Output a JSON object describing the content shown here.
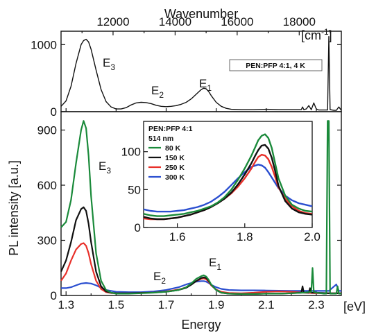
{
  "chart_data": {
    "type": "line",
    "top_axis": {
      "label": "Wavenumber",
      "unit": "[cm",
      "unit_sup": "-1",
      "unit_close": "]",
      "ticks": [
        {
          "value": 12000,
          "label": "12000"
        },
        {
          "value": 14000,
          "label": "14000"
        },
        {
          "value": 16000,
          "label": "16000"
        },
        {
          "value": 18000,
          "label": "18000"
        }
      ]
    },
    "bottom_axis": {
      "label": "Energy",
      "unit": "[eV]",
      "ticks": [
        {
          "value": 1.3,
          "label": "1.3"
        },
        {
          "value": 1.5,
          "label": "1.5"
        },
        {
          "value": 1.7,
          "label": "1.7"
        },
        {
          "value": 1.9,
          "label": "1.9"
        },
        {
          "value": 2.1,
          "label": "2.1"
        },
        {
          "value": 2.3,
          "label": "2.3"
        }
      ]
    },
    "ylabel": "PL intensity [a.u.]",
    "upper_panel": {
      "ylim": [
        0,
        1200
      ],
      "yticks": [
        {
          "value": 0,
          "label": "0"
        },
        {
          "value": 1000,
          "label": "1000"
        }
      ],
      "annotation": "PEN:PFP 4:1, 4 K",
      "peak_labels": [
        {
          "base": "E",
          "sub": "3"
        },
        {
          "base": "E",
          "sub": "2"
        },
        {
          "base": "E",
          "sub": "1"
        }
      ],
      "series": [
        {
          "color": "#111111",
          "x": [
            1.28,
            1.3,
            1.32,
            1.34,
            1.36,
            1.37,
            1.38,
            1.39,
            1.4,
            1.42,
            1.44,
            1.46,
            1.48,
            1.5,
            1.52,
            1.54,
            1.56,
            1.58,
            1.6,
            1.62,
            1.64,
            1.66,
            1.68,
            1.7,
            1.72,
            1.74,
            1.76,
            1.78,
            1.8,
            1.82,
            1.84,
            1.85,
            1.86,
            1.87,
            1.88,
            1.9,
            1.92,
            1.94,
            1.96,
            2.0,
            2.05,
            2.1,
            2.15,
            2.2,
            2.24,
            2.245,
            2.25,
            2.26,
            2.27,
            2.28,
            2.29,
            2.3,
            2.31,
            2.33,
            2.345,
            2.35,
            2.355,
            2.37,
            2.38,
            2.39,
            2.4
          ],
          "y": [
            80,
            160,
            380,
            720,
            1000,
            1060,
            1080,
            1040,
            930,
            620,
            330,
            150,
            70,
            40,
            40,
            60,
            100,
            130,
            140,
            135,
            120,
            95,
            80,
            75,
            80,
            90,
            110,
            140,
            190,
            260,
            330,
            350,
            340,
            300,
            240,
            140,
            80,
            50,
            35,
            30,
            30,
            35,
            30,
            30,
            30,
            70,
            30,
            40,
            90,
            30,
            130,
            40,
            25,
            25,
            25,
            1120,
            30,
            20,
            20,
            70,
            20
          ]
        }
      ]
    },
    "lower_panel": {
      "ylim": [
        0,
        1000
      ],
      "yticks": [
        {
          "value": 0,
          "label": "0"
        },
        {
          "value": 300,
          "label": "300"
        },
        {
          "value": 600,
          "label": "600"
        },
        {
          "value": 900,
          "label": "900"
        }
      ],
      "peak_labels": [
        {
          "base": "E",
          "sub": "3"
        },
        {
          "base": "E",
          "sub": "2"
        },
        {
          "base": "E",
          "sub": "1"
        }
      ],
      "legend": {
        "title_line1": "PEN:PFP 4:1",
        "title_line2": "514 nm",
        "entries": [
          {
            "label": "80 K",
            "color": "#1a8a3a"
          },
          {
            "label": "150 K",
            "color": "#111111"
          },
          {
            "label": "250 K",
            "color": "#e8302a"
          },
          {
            "label": "300 K",
            "color": "#2a4ed0"
          }
        ]
      },
      "series": [
        {
          "color": "#1a8a3a",
          "x": [
            1.28,
            1.3,
            1.32,
            1.34,
            1.36,
            1.37,
            1.38,
            1.39,
            1.4,
            1.42,
            1.44,
            1.46,
            1.48,
            1.5,
            1.55,
            1.6,
            1.65,
            1.7,
            1.75,
            1.78,
            1.8,
            1.82,
            1.84,
            1.85,
            1.86,
            1.87,
            1.88,
            1.9,
            1.92,
            1.95,
            2.0,
            2.05,
            2.1,
            2.15,
            2.2,
            2.25,
            2.28,
            2.285,
            2.29,
            2.3,
            2.33,
            2.34,
            2.345,
            2.35,
            2.355,
            2.37,
            2.38,
            2.385,
            2.39,
            2.4
          ],
          "y": [
            370,
            400,
            520,
            720,
            900,
            950,
            910,
            760,
            540,
            230,
            80,
            30,
            15,
            10,
            10,
            12,
            15,
            20,
            30,
            45,
            65,
            90,
            105,
            110,
            103,
            85,
            60,
            30,
            15,
            10,
            8,
            8,
            10,
            10,
            12,
            15,
            20,
            150,
            20,
            15,
            10,
            10,
            950,
            950,
            10,
            10,
            10,
            50,
            10,
            10
          ]
        },
        {
          "color": "#111111",
          "x": [
            1.28,
            1.3,
            1.32,
            1.34,
            1.36,
            1.37,
            1.38,
            1.39,
            1.4,
            1.42,
            1.44,
            1.46,
            1.48,
            1.5,
            1.55,
            1.6,
            1.65,
            1.7,
            1.75,
            1.78,
            1.8,
            1.82,
            1.84,
            1.85,
            1.86,
            1.87,
            1.88,
            1.9,
            1.92,
            1.95,
            2.0,
            2.05,
            2.1,
            2.15,
            2.2,
            2.24,
            2.245,
            2.25,
            2.27,
            2.275,
            2.28,
            2.3,
            2.35,
            2.4
          ],
          "y": [
            130,
            190,
            290,
            410,
            470,
            480,
            460,
            390,
            290,
            130,
            50,
            22,
            15,
            12,
            12,
            14,
            16,
            20,
            30,
            42,
            58,
            78,
            95,
            98,
            95,
            80,
            58,
            30,
            15,
            10,
            8,
            8,
            10,
            10,
            12,
            15,
            50,
            15,
            15,
            40,
            15,
            15,
            12,
            12
          ]
        },
        {
          "color": "#e8302a",
          "x": [
            1.28,
            1.3,
            1.32,
            1.34,
            1.36,
            1.37,
            1.38,
            1.39,
            1.4,
            1.42,
            1.44,
            1.46,
            1.48,
            1.5,
            1.55,
            1.6,
            1.65,
            1.7,
            1.75,
            1.78,
            1.8,
            1.82,
            1.84,
            1.85,
            1.86,
            1.87,
            1.88,
            1.9,
            1.92,
            1.95,
            2.0,
            2.05,
            2.1,
            2.15,
            2.2,
            2.25,
            2.3,
            2.35,
            2.4
          ],
          "y": [
            80,
            120,
            190,
            250,
            280,
            285,
            270,
            230,
            170,
            80,
            35,
            18,
            13,
            12,
            12,
            14,
            16,
            22,
            32,
            44,
            60,
            78,
            90,
            93,
            88,
            75,
            55,
            32,
            20,
            14,
            12,
            15,
            20,
            22,
            20,
            15,
            12,
            12,
            12
          ]
        },
        {
          "color": "#2a4ed0",
          "x": [
            1.28,
            1.3,
            1.32,
            1.34,
            1.36,
            1.38,
            1.4,
            1.42,
            1.44,
            1.46,
            1.5,
            1.55,
            1.6,
            1.65,
            1.7,
            1.75,
            1.78,
            1.8,
            1.82,
            1.84,
            1.85,
            1.86,
            1.87,
            1.88,
            1.9,
            1.92,
            1.95,
            2.0,
            2.05,
            2.1,
            2.15,
            2.2,
            2.25,
            2.3,
            2.35,
            2.38,
            2.39,
            2.4
          ],
          "y": [
            40,
            40,
            45,
            55,
            65,
            68,
            65,
            55,
            42,
            30,
            20,
            18,
            18,
            22,
            30,
            45,
            60,
            68,
            75,
            78,
            78,
            75,
            68,
            58,
            45,
            36,
            30,
            28,
            28,
            27,
            26,
            25,
            25,
            25,
            25,
            60,
            25,
            25
          ]
        }
      ]
    },
    "inset": {
      "xlim": [
        1.5,
        2.0
      ],
      "ylim": [
        0,
        140
      ],
      "xticks": [
        {
          "value": 1.6,
          "label": "1.6"
        },
        {
          "value": 1.8,
          "label": "1.8"
        },
        {
          "value": 2.0,
          "label": "2.0"
        }
      ],
      "yticks": [
        {
          "value": 0,
          "label": "0"
        },
        {
          "value": 50,
          "label": "50"
        },
        {
          "value": 100,
          "label": "100"
        }
      ],
      "series": [
        {
          "color": "#1a8a3a",
          "x": [
            1.5,
            1.52,
            1.54,
            1.56,
            1.58,
            1.6,
            1.62,
            1.64,
            1.66,
            1.68,
            1.7,
            1.72,
            1.74,
            1.76,
            1.78,
            1.8,
            1.82,
            1.83,
            1.84,
            1.85,
            1.86,
            1.87,
            1.88,
            1.89,
            1.9,
            1.92,
            1.94,
            1.96,
            1.98,
            2.0
          ],
          "y": [
            18,
            16,
            15,
            15,
            16,
            17,
            18,
            20,
            22,
            25,
            28,
            33,
            40,
            50,
            63,
            78,
            95,
            105,
            115,
            121,
            123,
            118,
            105,
            85,
            65,
            42,
            30,
            25,
            22,
            21
          ]
        },
        {
          "color": "#111111",
          "x": [
            1.5,
            1.52,
            1.54,
            1.56,
            1.58,
            1.6,
            1.62,
            1.64,
            1.66,
            1.68,
            1.7,
            1.72,
            1.74,
            1.76,
            1.78,
            1.8,
            1.82,
            1.83,
            1.84,
            1.85,
            1.86,
            1.87,
            1.88,
            1.89,
            1.9,
            1.92,
            1.94,
            1.96,
            1.98,
            2.0
          ],
          "y": [
            14,
            12,
            11,
            11,
            12,
            13,
            15,
            17,
            20,
            23,
            27,
            32,
            38,
            46,
            57,
            70,
            85,
            94,
            102,
            108,
            109,
            104,
            92,
            75,
            55,
            35,
            25,
            20,
            18,
            17
          ]
        },
        {
          "color": "#e8302a",
          "x": [
            1.5,
            1.52,
            1.54,
            1.56,
            1.58,
            1.6,
            1.62,
            1.64,
            1.66,
            1.68,
            1.7,
            1.72,
            1.74,
            1.76,
            1.78,
            1.8,
            1.82,
            1.83,
            1.84,
            1.85,
            1.86,
            1.87,
            1.88,
            1.89,
            1.9,
            1.92,
            1.94,
            1.96,
            1.98,
            2.0
          ],
          "y": [
            12,
            11,
            11,
            11,
            12,
            13,
            15,
            17,
            20,
            23,
            27,
            32,
            38,
            45,
            54,
            65,
            78,
            86,
            93,
            96,
            95,
            90,
            80,
            67,
            53,
            38,
            28,
            22,
            19,
            18
          ]
        },
        {
          "color": "#2a4ed0",
          "x": [
            1.5,
            1.52,
            1.54,
            1.56,
            1.58,
            1.6,
            1.62,
            1.64,
            1.66,
            1.68,
            1.7,
            1.72,
            1.74,
            1.76,
            1.78,
            1.8,
            1.82,
            1.84,
            1.85,
            1.86,
            1.87,
            1.88,
            1.9,
            1.92,
            1.94,
            1.96,
            1.98,
            2.0
          ],
          "y": [
            24,
            22,
            21,
            21,
            21,
            22,
            23,
            25,
            27,
            30,
            34,
            40,
            47,
            56,
            65,
            73,
            80,
            83,
            82,
            79,
            73,
            66,
            52,
            42,
            36,
            32,
            30,
            28
          ]
        }
      ]
    }
  }
}
